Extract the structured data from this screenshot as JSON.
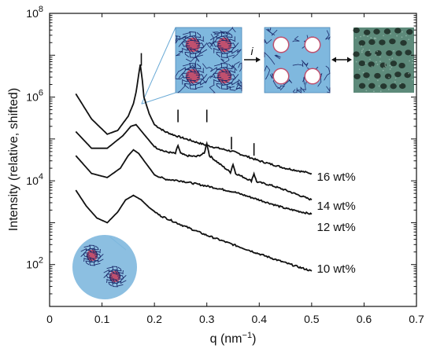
{
  "chart_data": {
    "type": "line",
    "xlabel": "q (nm",
    "xlabel_sup": "−1",
    "xlabel_close": ")",
    "ylabel": "Intensity (relative, shifted)",
    "xlim": [
      0,
      0.7
    ],
    "ylim_log10": [
      1,
      8
    ],
    "xticks": [
      "0",
      "0.1",
      "0.2",
      "0.3",
      "0.4",
      "0.5",
      "0.6",
      "0.7"
    ],
    "yticks": [
      {
        "base": "10",
        "exp": "2",
        "log": 2
      },
      {
        "base": "10",
        "exp": "4",
        "log": 4
      },
      {
        "base": "10",
        "exp": "6",
        "log": 6
      },
      {
        "base": "10",
        "exp": "8",
        "log": 8
      }
    ],
    "grid": false,
    "series": [
      {
        "name": "16 wt%",
        "x": [
          0.05,
          0.08,
          0.11,
          0.13,
          0.15,
          0.16,
          0.165,
          0.17,
          0.173,
          0.177,
          0.18,
          0.19,
          0.2,
          0.22,
          0.24,
          0.3,
          0.35,
          0.4,
          0.45,
          0.5
        ],
        "y": [
          1200000.0,
          300000.0,
          130000.0,
          160000.0,
          350000.0,
          700000.0,
          1300000.0,
          3500000.0,
          6000000.0,
          2500000.0,
          1000000.0,
          400000.0,
          220000.0,
          150000.0,
          120000.0,
          70000.0,
          50000.0,
          30000.0,
          20000.0,
          15000.0
        ]
      },
      {
        "name": "14 wt%",
        "x": [
          0.05,
          0.08,
          0.11,
          0.14,
          0.155,
          0.165,
          0.18,
          0.2,
          0.22,
          0.24,
          0.245,
          0.25,
          0.26,
          0.28,
          0.295,
          0.3,
          0.305,
          0.32,
          0.345,
          0.35,
          0.355,
          0.385,
          0.39,
          0.395,
          0.42,
          0.45,
          0.5
        ],
        "y": [
          150000.0,
          60000.0,
          60000.0,
          120000.0,
          200000.0,
          220000.0,
          130000.0,
          65000.0,
          50000.0,
          45000.0,
          70000.0,
          45000.0,
          40000.0,
          38000.0,
          45000.0,
          80000.0,
          40000.0,
          28000.0,
          16000.0,
          25000.0,
          15000.0,
          10000.0,
          15000.0,
          9500.0,
          8000.0,
          6000.0,
          3500.0
        ]
      },
      {
        "name": "12 wt%",
        "x": [
          0.05,
          0.08,
          0.11,
          0.135,
          0.15,
          0.16,
          0.17,
          0.185,
          0.2,
          0.22,
          0.25,
          0.3,
          0.35,
          0.4,
          0.45,
          0.5
        ],
        "y": [
          40000.0,
          15000.0,
          12000.0,
          20000.0,
          40000.0,
          55000.0,
          45000.0,
          25000.0,
          14000.0,
          11000.0,
          10000.0,
          7500.0,
          5500.0,
          3500.0,
          2200.0,
          1600.0
        ]
      },
      {
        "name": "10 wt%",
        "x": [
          0.05,
          0.07,
          0.09,
          0.11,
          0.13,
          0.145,
          0.16,
          0.175,
          0.19,
          0.21,
          0.25,
          0.3,
          0.35,
          0.4,
          0.45,
          0.5
        ],
        "y": [
          6000.0,
          2500.0,
          1300.0,
          1000.0,
          1800.0,
          3500.0,
          4500.0,
          3500.0,
          2300.0,
          1500.0,
          900.0,
          500.0,
          300.0,
          180.0,
          110.0,
          70.0
        ]
      }
    ],
    "peak_marks": [
      {
        "q": 0.175,
        "level": 6.9
      },
      {
        "q": 0.245,
        "level": 5.55
      },
      {
        "q": 0.3,
        "level": 5.55
      },
      {
        "q": 0.347,
        "level": 4.9
      },
      {
        "q": 0.39,
        "level": 4.75
      }
    ],
    "series_labels": [
      {
        "text": "16 wt%",
        "q": 0.51,
        "level": 4.1
      },
      {
        "text": "14 wt%",
        "q": 0.51,
        "level": 3.4
      },
      {
        "text": "12 wt%",
        "q": 0.51,
        "level": 2.9
      },
      {
        "text": "10 wt%",
        "q": 0.51,
        "level": 1.9
      }
    ],
    "inset": {
      "arrow_label": "i",
      "colors": {
        "matrix": "#7fb8de",
        "chains": "#1c2b6b",
        "core": "#c0506e",
        "pore": "#ffffff",
        "tem": "#5d8a7a"
      }
    }
  }
}
